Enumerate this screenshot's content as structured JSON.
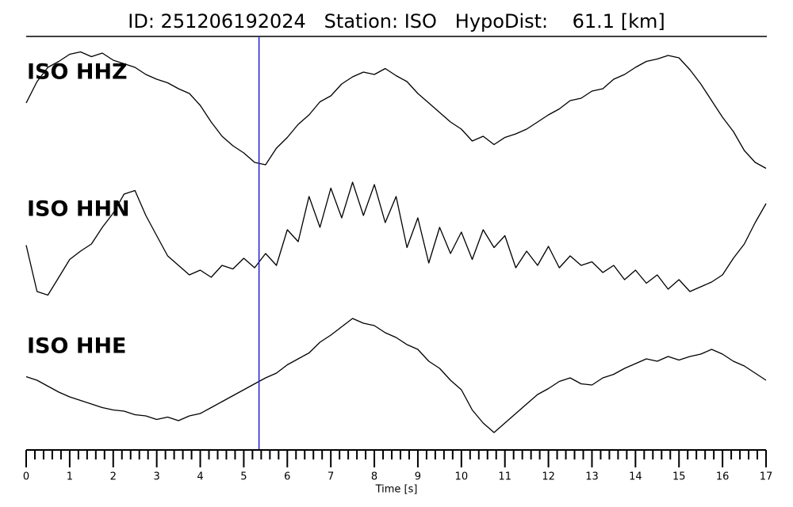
{
  "chart_data": {
    "type": "line",
    "title": "ID: 251206192024   Station: ISO   HypoDist:    61.1 [km]",
    "xlabel": "Time [s]",
    "xlim": [
      0,
      17
    ],
    "xticks": [
      0,
      1,
      2,
      3,
      4,
      5,
      6,
      7,
      8,
      9,
      10,
      11,
      12,
      13,
      14,
      15,
      16,
      17
    ],
    "xminorticks": [
      0.2,
      0.4,
      0.6,
      0.8,
      1.2,
      1.4,
      1.6,
      1.8,
      2.2,
      2.4,
      2.6,
      2.8,
      3.2,
      3.4,
      3.6,
      3.8,
      4.2,
      4.4,
      4.6,
      4.8,
      5.2,
      5.4,
      5.6,
      5.8,
      6.2,
      6.4,
      6.6,
      6.8,
      7.2,
      7.4,
      7.6,
      7.8,
      8.2,
      8.4,
      8.6,
      8.8,
      9.2,
      9.4,
      9.6,
      9.8,
      10.2,
      10.4,
      10.6,
      10.8,
      11.2,
      11.4,
      11.6,
      11.8,
      12.2,
      12.4,
      12.6,
      12.8,
      13.2,
      13.4,
      13.6,
      13.8,
      14.2,
      14.4,
      14.6,
      14.8,
      15.2,
      15.4,
      15.6,
      15.8,
      16.2,
      16.4,
      16.6,
      16.8
    ],
    "marker_x": 5.35,
    "marker_color": "#1f1fcc",
    "label_color": "#4e9a06",
    "x": [
      0,
      0.25,
      0.5,
      0.75,
      1,
      1.25,
      1.5,
      1.75,
      2,
      2.25,
      2.5,
      2.75,
      3,
      3.25,
      3.5,
      3.75,
      4,
      4.25,
      4.5,
      4.75,
      5,
      5.25,
      5.5,
      5.75,
      6,
      6.25,
      6.5,
      6.75,
      7,
      7.25,
      7.5,
      7.75,
      8,
      8.25,
      8.5,
      8.75,
      9,
      9.25,
      9.5,
      9.75,
      10,
      10.25,
      10.5,
      10.75,
      11,
      11.25,
      11.5,
      11.75,
      12,
      12.25,
      12.5,
      12.75,
      13,
      13.25,
      13.5,
      13.75,
      14,
      14.25,
      14.5,
      14.75,
      15,
      15.25,
      15.5,
      15.75,
      16,
      16.25,
      16.5,
      16.75,
      17
    ],
    "series": [
      {
        "name": "ISO HHZ",
        "color": "#000000",
        "values": [
          0.6,
          0.78,
          0.9,
          0.95,
          1.01,
          1.03,
          0.99,
          1.02,
          0.96,
          0.93,
          0.9,
          0.84,
          0.8,
          0.77,
          0.72,
          0.68,
          0.58,
          0.44,
          0.32,
          0.24,
          0.18,
          0.1,
          0.08,
          0.22,
          0.31,
          0.42,
          0.5,
          0.61,
          0.66,
          0.76,
          0.82,
          0.86,
          0.84,
          0.89,
          0.83,
          0.78,
          0.68,
          0.6,
          0.52,
          0.44,
          0.38,
          0.28,
          0.32,
          0.25,
          0.31,
          0.34,
          0.38,
          0.44,
          0.5,
          0.55,
          0.62,
          0.64,
          0.7,
          0.72,
          0.8,
          0.84,
          0.9,
          0.95,
          0.97,
          1.0,
          0.98,
          0.88,
          0.76,
          0.62,
          0.48,
          0.36,
          0.2,
          0.1,
          0.05
        ]
      },
      {
        "name": "ISO HHN",
        "color": "#000000",
        "values": [
          0.47,
          0.08,
          0.05,
          0.2,
          0.35,
          0.42,
          0.48,
          0.62,
          0.74,
          0.9,
          0.93,
          0.72,
          0.55,
          0.38,
          0.3,
          0.22,
          0.26,
          0.2,
          0.3,
          0.27,
          0.36,
          0.28,
          0.4,
          0.3,
          0.6,
          0.5,
          0.88,
          0.62,
          0.95,
          0.7,
          1.0,
          0.72,
          0.98,
          0.66,
          0.88,
          0.45,
          0.7,
          0.32,
          0.62,
          0.4,
          0.58,
          0.35,
          0.6,
          0.45,
          0.55,
          0.28,
          0.42,
          0.3,
          0.46,
          0.28,
          0.38,
          0.3,
          0.33,
          0.24,
          0.3,
          0.18,
          0.26,
          0.15,
          0.22,
          0.1,
          0.18,
          0.08,
          0.12,
          0.16,
          0.22,
          0.36,
          0.48,
          0.66,
          0.82
        ]
      },
      {
        "name": "ISO HHE",
        "color": "#000000",
        "values": [
          0.53,
          0.5,
          0.45,
          0.4,
          0.36,
          0.33,
          0.3,
          0.27,
          0.25,
          0.24,
          0.21,
          0.2,
          0.17,
          0.19,
          0.16,
          0.2,
          0.22,
          0.27,
          0.32,
          0.37,
          0.42,
          0.47,
          0.52,
          0.56,
          0.63,
          0.68,
          0.73,
          0.82,
          0.88,
          0.95,
          1.02,
          0.98,
          0.96,
          0.9,
          0.86,
          0.8,
          0.76,
          0.66,
          0.6,
          0.5,
          0.42,
          0.25,
          0.14,
          0.06,
          0.14,
          0.22,
          0.3,
          0.38,
          0.43,
          0.49,
          0.52,
          0.47,
          0.46,
          0.52,
          0.55,
          0.6,
          0.64,
          0.68,
          0.66,
          0.7,
          0.67,
          0.7,
          0.72,
          0.76,
          0.72,
          0.66,
          0.62,
          0.56,
          0.5
        ]
      }
    ]
  }
}
